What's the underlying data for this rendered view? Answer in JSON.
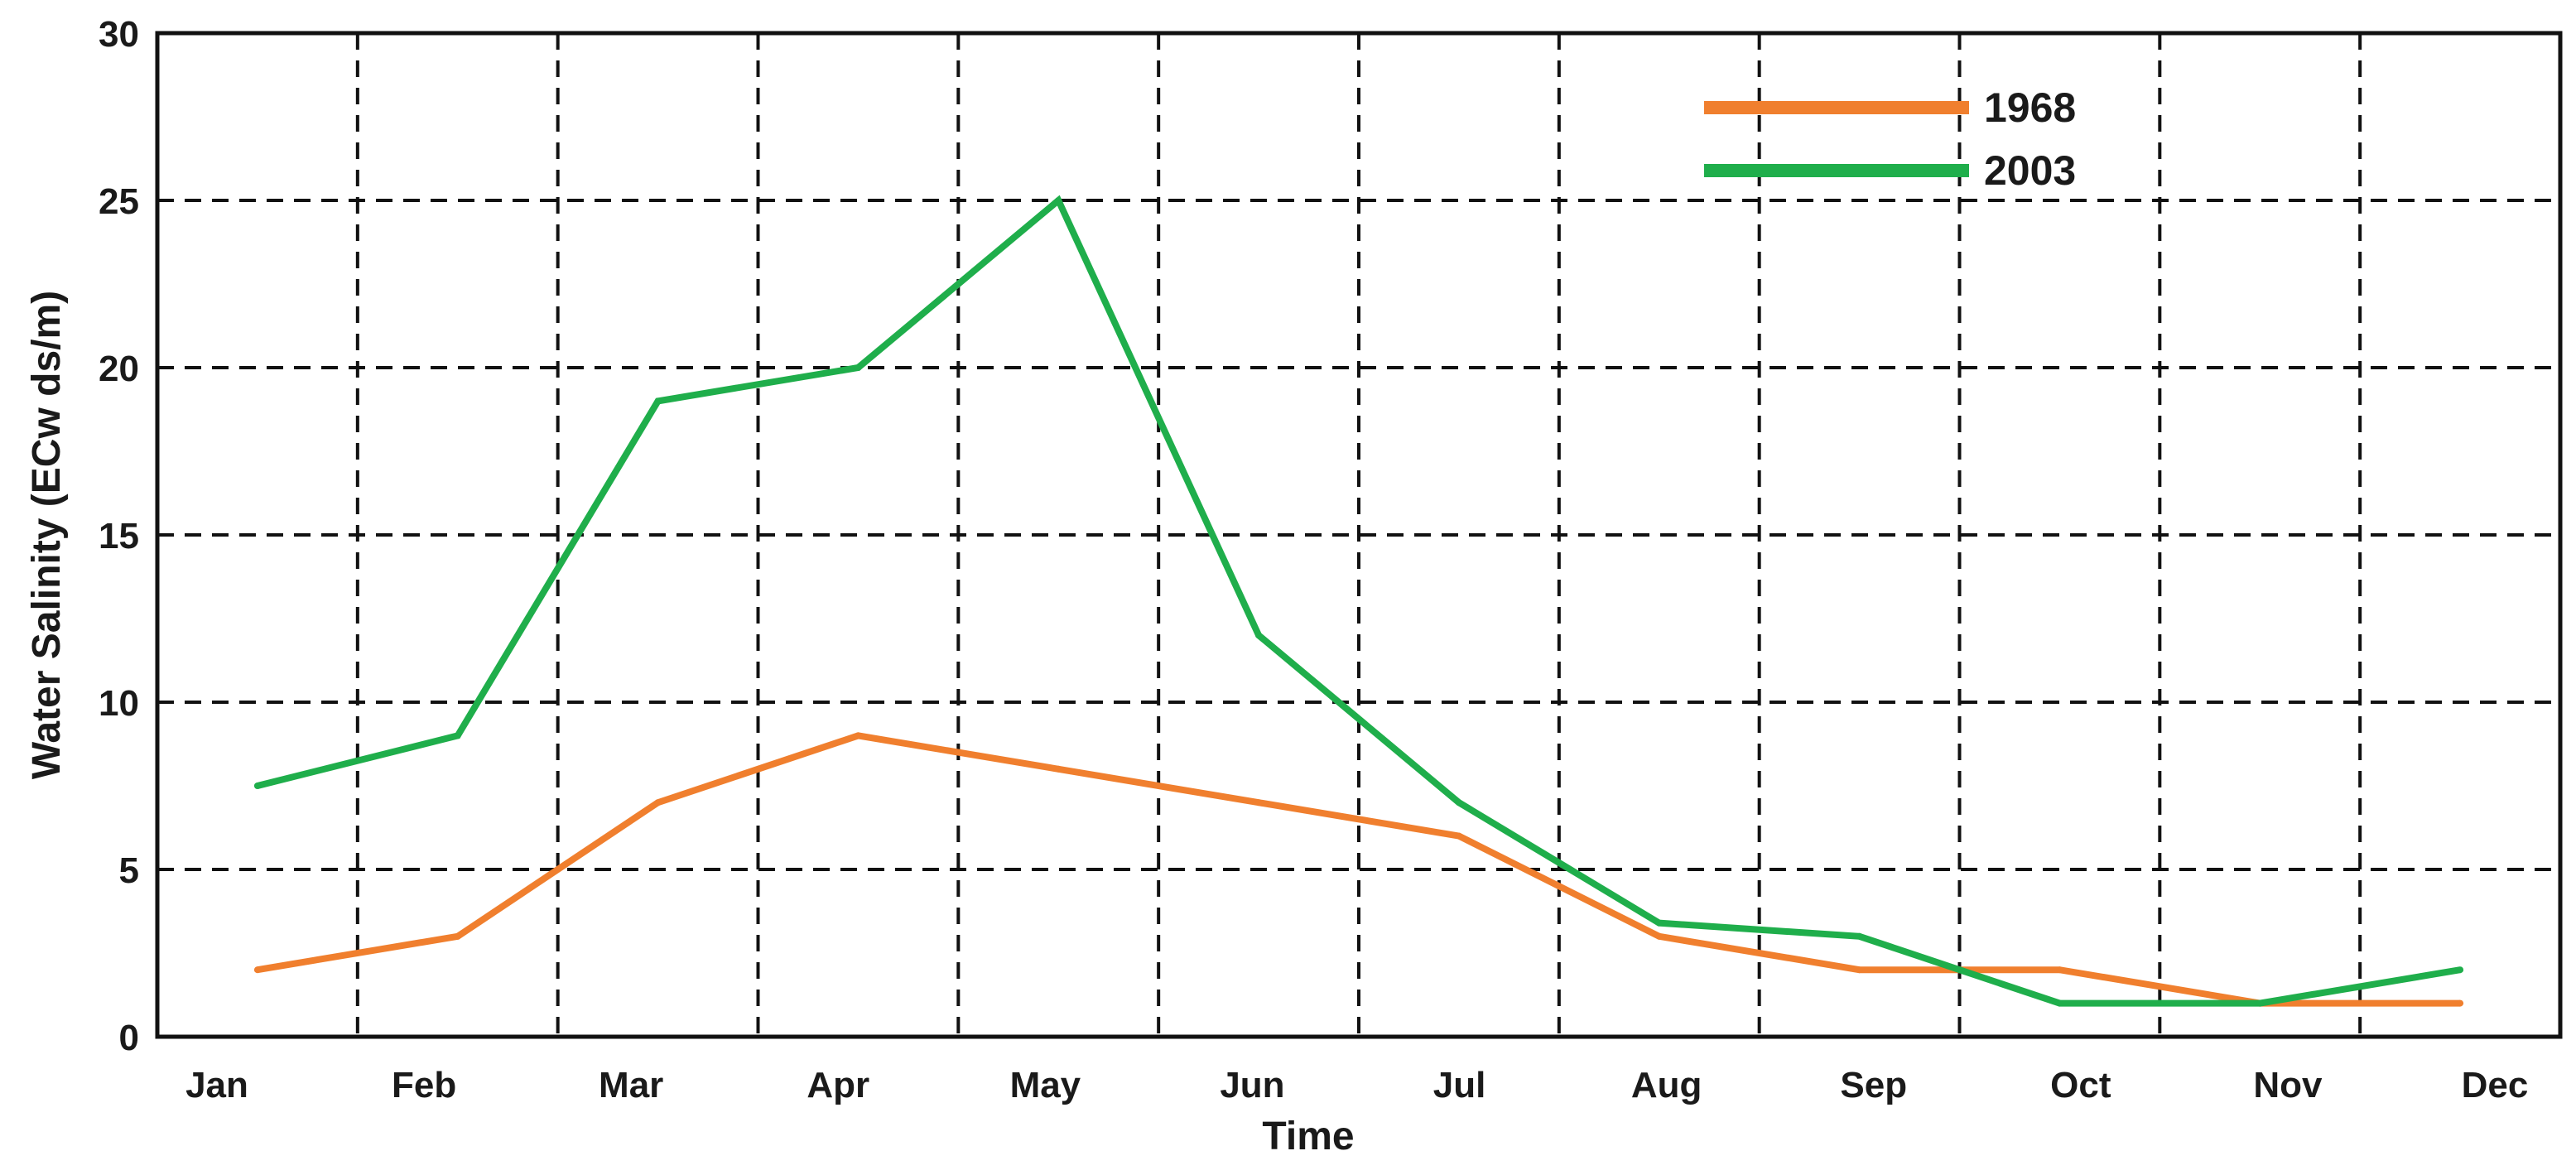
{
  "chart_data": {
    "type": "line",
    "title": "",
    "xlabel": "Time",
    "ylabel": "Water Salinity (ECw ds/m)",
    "categories": [
      "Jan",
      "Feb",
      "Mar",
      "Apr",
      "May",
      "Jun",
      "Jul",
      "Aug",
      "Sep",
      "Oct",
      "Nov",
      "Dec"
    ],
    "ylim": [
      0,
      30
    ],
    "yticks": [
      0,
      5,
      10,
      15,
      20,
      25,
      30
    ],
    "grid": true,
    "legend_position": "top-right",
    "series": [
      {
        "name": "1968",
        "color": "#F07F2E",
        "values": [
          2,
          3,
          7,
          9,
          8,
          7,
          6,
          3,
          2,
          2,
          1,
          1
        ]
      },
      {
        "name": "2003",
        "color": "#1FAE4B",
        "values": [
          7.5,
          9,
          19,
          20,
          25,
          12,
          7,
          3.4,
          3,
          1,
          1,
          2
        ]
      }
    ]
  }
}
